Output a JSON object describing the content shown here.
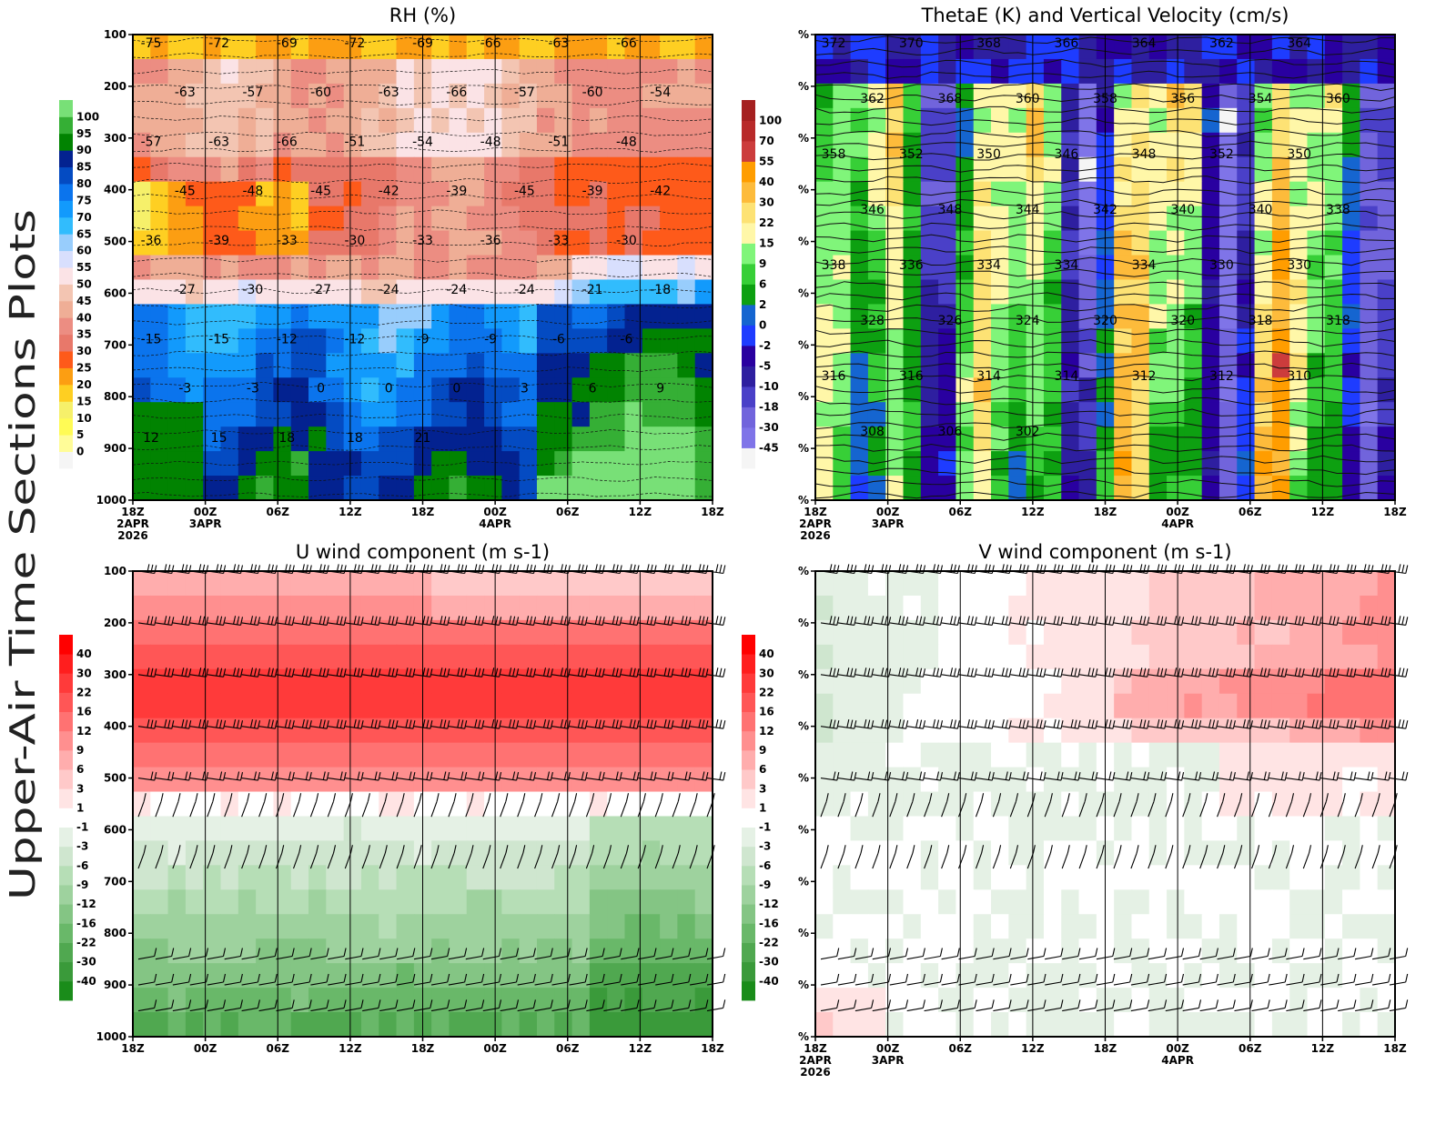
{
  "page_title": "Upper-Air Time Sections Plots",
  "time_axis": {
    "ticks": [
      "18Z",
      "00Z",
      "06Z",
      "12Z",
      "18Z",
      "00Z",
      "06Z",
      "12Z",
      "18Z"
    ],
    "date_labels": [
      {
        "tick_index": 0,
        "lines": [
          "2APR",
          "2026"
        ]
      },
      {
        "tick_index": 1,
        "lines": [
          "3APR"
        ]
      },
      {
        "tick_index": 5,
        "lines": [
          "4APR"
        ]
      }
    ]
  },
  "colors": {
    "rh": [
      "#f5f5f5",
      "#fffc98",
      "#fffb55",
      "#f6f06a",
      "#fecf22",
      "#fc9e12",
      "#fe5a1a",
      "#e8786a",
      "#ec8d82",
      "#efae96",
      "#f3c5b2",
      "#fbe3e6",
      "#d8dffd",
      "#98cdfc",
      "#31bcfd",
      "#129afc",
      "#0b74ed",
      "#044bc2",
      "#032290",
      "#018301",
      "#35af35",
      "#78e077"
    ],
    "thetae": [
      "#f5f5f5",
      "#7f74e8",
      "#7164dc",
      "#4a40c8",
      "#2e1fa0",
      "#2900a0",
      "#1e3cff",
      "#1565d0",
      "#0da011",
      "#37cf37",
      "#80f57a",
      "#fff7a8",
      "#fde274",
      "#fdbb3b",
      "#ff9d00",
      "#cc3c3c",
      "#b82a2a",
      "#a52020"
    ],
    "wind": [
      "#1a8c1a",
      "#3a9a3a",
      "#50a850",
      "#69b869",
      "#84c584",
      "#9ed29e",
      "#b6deb6",
      "#cfe6cf",
      "#e5f1e5",
      "#ffffff",
      "#ffe4e4",
      "#ffc9c9",
      "#ffadad",
      "#ff8f8f",
      "#ff7272",
      "#ff5656",
      "#ff3a3a",
      "#ff1e1e",
      "#ff0000"
    ]
  },
  "chart_data": [
    {
      "type": "heatmap",
      "title": "RH (%)",
      "xlabel": "",
      "ylabel": "",
      "y_ticks": [
        "100",
        "200",
        "300",
        "400",
        "500",
        "600",
        "700",
        "800",
        "900",
        "1000"
      ],
      "ylim": [
        1000,
        100
      ],
      "colorbar_labels": [
        "100",
        "95",
        "90",
        "85",
        "80",
        "75",
        "70",
        "65",
        "60",
        "55",
        "50",
        "45",
        "40",
        "35",
        "30",
        "25",
        "20",
        "15",
        "10",
        "5",
        "0"
      ],
      "contour_labels": [
        "-75",
        "-72",
        "-69",
        "-72",
        "-69",
        "-66",
        "-63",
        "-66",
        "-63",
        "-57",
        "-60",
        "-63",
        "-66",
        "-57",
        "-60",
        "-54",
        "-57",
        "-63",
        "-66",
        "-51",
        "-54",
        "-48",
        "-51",
        "-48",
        "-45",
        "-48",
        "-45",
        "-42",
        "-39",
        "-45",
        "-39",
        "-42",
        "-36",
        "-39",
        "-33",
        "-30",
        "-33",
        "-36",
        "-33",
        "-30",
        "-27",
        "-30",
        "-27",
        "-24",
        "-24",
        "-24",
        "-21",
        "-18",
        "-15",
        "-15",
        "-12",
        "-12",
        "-9",
        "-9",
        "-6",
        "-6",
        "-3",
        "-3",
        "0",
        "0",
        "0",
        "3",
        "6",
        "9",
        "12",
        "15",
        "18",
        "18",
        "21"
      ],
      "contour_variable": "temperature (C)"
    },
    {
      "type": "heatmap",
      "title": "ThetaE (K) and Vertical Velocity (cm/s)",
      "xlabel": "",
      "ylabel": "",
      "y_ticks": [
        "%",
        "%",
        "%",
        "%",
        "%",
        "%",
        "%",
        "%",
        "%",
        "%"
      ],
      "colorbar_labels": [
        "100",
        "70",
        "55",
        "40",
        "30",
        "22",
        "15",
        "9",
        "6",
        "2",
        "0",
        "-2",
        "-5",
        "-10",
        "-18",
        "-30",
        "-45"
      ],
      "contour_labels": [
        "372",
        "370",
        "368",
        "366",
        "364",
        "362",
        "364",
        "362",
        "368",
        "360",
        "358",
        "356",
        "354",
        "360",
        "358",
        "352",
        "350",
        "346",
        "348",
        "352",
        "350",
        "346",
        "348",
        "344",
        "342",
        "340",
        "340",
        "338",
        "338",
        "336",
        "334",
        "334",
        "334",
        "330",
        "330",
        "328",
        "326",
        "324",
        "320",
        "320",
        "318",
        "318",
        "316",
        "316",
        "314",
        "314",
        "312",
        "312",
        "310",
        "308",
        "306",
        "302"
      ]
    },
    {
      "type": "heatmap",
      "title": "U wind component (m s-1)",
      "xlabel": "",
      "ylabel": "",
      "y_ticks": [
        "100",
        "200",
        "300",
        "400",
        "500",
        "600",
        "700",
        "800",
        "900",
        "1000"
      ],
      "ylim": [
        1000,
        100
      ],
      "colorbar_labels": [
        "40",
        "30",
        "22",
        "16",
        "12",
        "9",
        "6",
        "3",
        "1",
        "-1",
        "-3",
        "-6",
        "-9",
        "-12",
        "-16",
        "-22",
        "-30",
        "-40"
      ],
      "wind_barb_levels": [
        100,
        200,
        300,
        400,
        500,
        575,
        675,
        850,
        900,
        950
      ]
    },
    {
      "type": "heatmap",
      "title": "V wind component (m s-1)",
      "xlabel": "",
      "ylabel": "",
      "y_ticks": [
        "%",
        "%",
        "%",
        "%",
        "%",
        "%",
        "%",
        "%",
        "%",
        "%"
      ],
      "colorbar_labels": [
        "40",
        "30",
        "22",
        "16",
        "12",
        "9",
        "6",
        "3",
        "1",
        "-1",
        "-3",
        "-6",
        "-9",
        "-12",
        "-16",
        "-22",
        "-30",
        "-40"
      ],
      "wind_barb_levels": [
        100,
        200,
        300,
        400,
        500,
        575,
        675,
        850,
        900,
        950
      ]
    }
  ]
}
